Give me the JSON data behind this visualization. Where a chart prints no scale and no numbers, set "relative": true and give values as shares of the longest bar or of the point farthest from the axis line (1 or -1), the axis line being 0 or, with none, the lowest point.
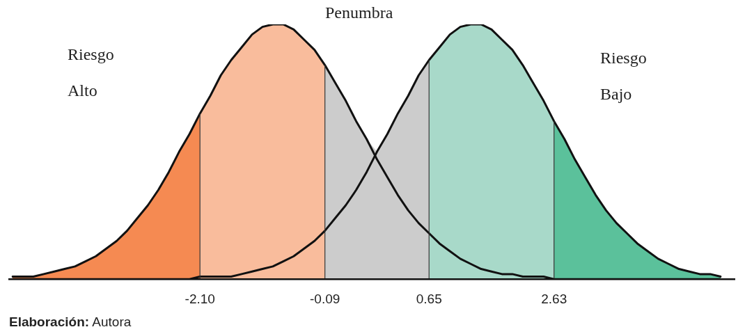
{
  "chart_data": {
    "type": "area",
    "relative": true,
    "legend": false,
    "categories": [
      null,
      null,
      null,
      null,
      null,
      null,
      null,
      null,
      null,
      null,
      null,
      null,
      null,
      null,
      null,
      null,
      null,
      null,
      "-2.10",
      null,
      null,
      null,
      null,
      null,
      null,
      null,
      null,
      null,
      null,
      null,
      "-0.09",
      null,
      null,
      null,
      null,
      null,
      null,
      null,
      null,
      null,
      "0.65",
      null,
      null,
      null,
      null,
      null,
      null,
      null,
      null,
      null,
      null,
      null,
      "2.63",
      null,
      null,
      null,
      null,
      null,
      null,
      null,
      null,
      null,
      null,
      null,
      null,
      null,
      null,
      null,
      null
    ],
    "series": [
      {
        "color": "#f58a52",
        "values": [
          0.01,
          0.01,
          0.01,
          0.02,
          0.03,
          0.04,
          0.05,
          0.07,
          0.09,
          0.12,
          0.15,
          0.19,
          0.24,
          0.29,
          0.35,
          0.42,
          0.5,
          0.57,
          0.65,
          null,
          null,
          null,
          null,
          null,
          null,
          null,
          null,
          null,
          null,
          null,
          null,
          null,
          null,
          null,
          null,
          null,
          null,
          null,
          null,
          null,
          null,
          null,
          null,
          null,
          null,
          null,
          null,
          null,
          null,
          null,
          null,
          null,
          null,
          null,
          null,
          null,
          null,
          null,
          null,
          null,
          null,
          null,
          null,
          null,
          null,
          null,
          null,
          null,
          null
        ]
      },
      {
        "color": "#f9bc9c",
        "values": [
          null,
          null,
          null,
          null,
          null,
          null,
          null,
          null,
          null,
          null,
          null,
          null,
          null,
          null,
          null,
          null,
          null,
          null,
          0.65,
          0.72,
          0.8,
          0.86,
          0.91,
          0.96,
          0.99,
          1.0,
          1.0,
          0.98,
          0.94,
          0.9,
          0.84,
          null,
          null,
          null,
          null,
          null,
          null,
          null,
          null,
          null,
          null,
          null,
          null,
          null,
          null,
          null,
          null,
          null,
          null,
          null,
          null,
          null,
          null,
          null,
          null,
          null,
          null,
          null,
          null,
          null,
          null,
          null,
          null,
          null,
          null,
          null,
          null,
          null,
          null
        ]
      },
      {
        "color": "#cccccc",
        "values": [
          null,
          null,
          null,
          null,
          null,
          null,
          null,
          null,
          null,
          null,
          null,
          null,
          null,
          null,
          null,
          null,
          null,
          null,
          null,
          null,
          null,
          null,
          null,
          null,
          null,
          null,
          null,
          null,
          null,
          null,
          0.84,
          0.77,
          0.7,
          0.62,
          0.55,
          0.5,
          0.57,
          0.65,
          0.72,
          0.8,
          0.86,
          null,
          null,
          null,
          null,
          null,
          null,
          null,
          null,
          null,
          null,
          null,
          null,
          null,
          null,
          null,
          null,
          null,
          null,
          null,
          null,
          null,
          null,
          null,
          null,
          null,
          null,
          null,
          null
        ]
      },
      {
        "color": "#a8d9c9",
        "values": [
          null,
          null,
          null,
          null,
          null,
          null,
          null,
          null,
          null,
          null,
          null,
          null,
          null,
          null,
          null,
          null,
          null,
          null,
          null,
          null,
          null,
          null,
          null,
          null,
          null,
          null,
          null,
          null,
          null,
          null,
          null,
          null,
          null,
          null,
          null,
          null,
          null,
          null,
          null,
          null,
          0.86,
          0.91,
          0.96,
          0.99,
          1.0,
          1.0,
          0.98,
          0.94,
          0.9,
          0.84,
          0.77,
          0.7,
          0.62,
          null,
          null,
          null,
          null,
          null,
          null,
          null,
          null,
          null,
          null,
          null,
          null,
          null,
          null,
          null,
          null
        ]
      },
      {
        "color": "#5bc19b",
        "values": [
          null,
          null,
          null,
          null,
          null,
          null,
          null,
          null,
          null,
          null,
          null,
          null,
          null,
          null,
          null,
          null,
          null,
          null,
          null,
          null,
          null,
          null,
          null,
          null,
          null,
          null,
          null,
          null,
          null,
          null,
          null,
          null,
          null,
          null,
          null,
          null,
          null,
          null,
          null,
          null,
          null,
          null,
          null,
          null,
          null,
          null,
          null,
          null,
          null,
          null,
          null,
          null,
          0.62,
          0.55,
          0.47,
          0.4,
          0.33,
          0.27,
          0.22,
          0.18,
          0.14,
          0.11,
          0.08,
          0.06,
          0.04,
          0.03,
          0.02,
          0.02,
          0.01
        ]
      },
      {
        "type": "line",
        "color": "#111111",
        "values": [
          0.01,
          0.01,
          0.01,
          0.02,
          0.03,
          0.04,
          0.05,
          0.07,
          0.09,
          0.12,
          0.15,
          0.19,
          0.24,
          0.29,
          0.35,
          0.42,
          0.5,
          0.57,
          0.65,
          0.72,
          0.8,
          0.86,
          0.91,
          0.96,
          0.99,
          1.0,
          1.0,
          0.98,
          0.94,
          0.9,
          0.84,
          0.77,
          0.7,
          0.62,
          0.55,
          0.47,
          0.4,
          0.33,
          0.27,
          0.22,
          0.18,
          0.14,
          0.11,
          0.08,
          0.06,
          0.04,
          0.03,
          0.02,
          0.02,
          0.01,
          0.01,
          0.01,
          0,
          0,
          0,
          0,
          0,
          0,
          0,
          0,
          0,
          0,
          0,
          0,
          0,
          0,
          0,
          0,
          0
        ]
      },
      {
        "type": "line",
        "color": "#111111",
        "values": [
          0,
          0,
          0,
          0,
          0,
          0,
          0,
          0,
          0,
          0,
          0,
          0,
          0,
          0,
          0,
          0,
          0,
          0,
          0.01,
          0.01,
          0.01,
          0.01,
          0.02,
          0.03,
          0.04,
          0.05,
          0.07,
          0.09,
          0.12,
          0.15,
          0.19,
          0.24,
          0.29,
          0.35,
          0.42,
          0.5,
          0.57,
          0.65,
          0.72,
          0.8,
          0.86,
          0.91,
          0.96,
          0.99,
          1.0,
          1.0,
          0.98,
          0.94,
          0.9,
          0.84,
          0.77,
          0.7,
          0.62,
          0.55,
          0.47,
          0.4,
          0.33,
          0.27,
          0.22,
          0.18,
          0.14,
          0.11,
          0.08,
          0.06,
          0.04,
          0.03,
          0.02,
          0.02,
          0.01
        ]
      }
    ],
    "annotations": [
      "Riesgo\nAlto",
      "Penumbra",
      "Riesgo\nBajo",
      "Elaboración: Autora"
    ]
  }
}
